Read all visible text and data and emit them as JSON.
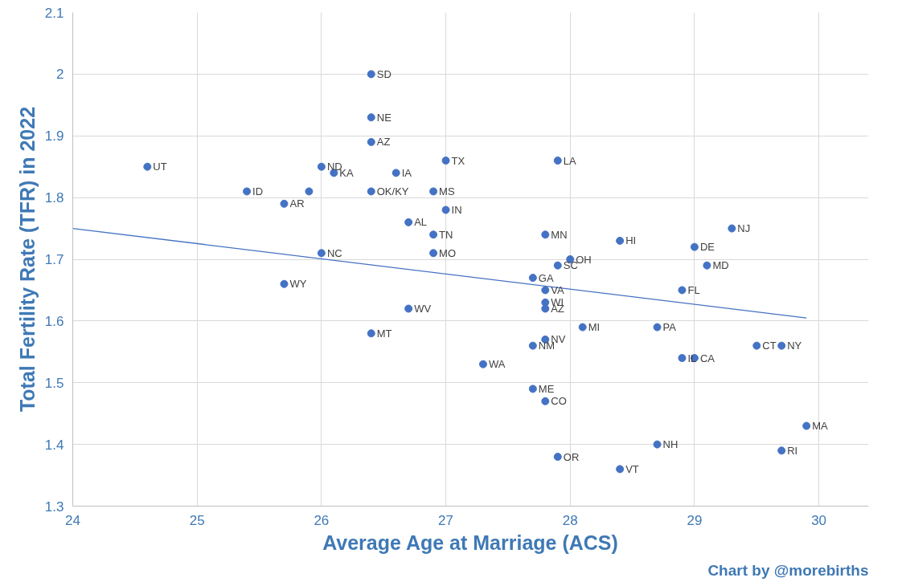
{
  "chart_data": {
    "type": "scatter",
    "xlabel": "Average Age at Marriage (ACS)",
    "ylabel": "Total Fertility Rate (TFR) in 2022",
    "annotations": [
      "Chart by @morebirths"
    ],
    "xlim": [
      24,
      30.4
    ],
    "xticks": [
      24,
      25,
      26,
      27,
      28,
      29,
      30
    ],
    "ylim": [
      1.3,
      2.1
    ],
    "yticks": [
      1.3,
      1.4,
      1.5,
      1.6,
      1.7,
      1.8,
      1.9,
      {
        "value": 2.0,
        "label": "2"
      },
      2.1
    ],
    "grid": true,
    "series": [
      {
        "marker": "circle",
        "color": "#4472c4",
        "x": [
          24.6,
          25.4,
          25.7,
          25.9,
          26.0,
          26.1,
          26.4,
          26.4,
          26.4,
          26.4,
          26.6,
          27.0,
          26.9,
          27.0,
          26.7,
          26.9,
          26.9,
          26.0,
          25.7,
          26.7,
          26.4,
          27.9,
          27.8,
          27.9,
          28.0,
          27.7,
          27.8,
          27.8,
          27.8,
          28.1,
          27.7,
          27.8,
          27.3,
          27.7,
          27.8,
          27.9,
          28.4,
          28.7,
          28.4,
          29.3,
          29.0,
          29.1,
          28.9,
          28.7,
          28.9,
          29.0,
          29.5,
          29.7,
          29.9,
          29.7
        ],
        "values": [
          1.85,
          1.81,
          1.79,
          1.81,
          1.85,
          1.84,
          2.0,
          1.93,
          1.89,
          1.81,
          1.84,
          1.86,
          1.81,
          1.78,
          1.76,
          1.74,
          1.71,
          1.71,
          1.66,
          1.62,
          1.58,
          1.86,
          1.74,
          1.69,
          1.7,
          1.67,
          1.65,
          1.63,
          1.62,
          1.59,
          1.56,
          1.57,
          1.53,
          1.49,
          1.47,
          1.38,
          1.36,
          1.4,
          1.73,
          1.75,
          1.72,
          1.69,
          1.65,
          1.59,
          1.54,
          1.54,
          1.56,
          1.56,
          1.43,
          1.39
        ],
        "value_labels": [
          "UT",
          "ID",
          "AR",
          null,
          "ND",
          "KA",
          "SD",
          "NE",
          "AZ",
          "OK/KY",
          "IA",
          "TX",
          "MS",
          "IN",
          "AL",
          "TN",
          "MO",
          "NC",
          "WY",
          "WV",
          "MT",
          "LA",
          "MN",
          "SC",
          "OH",
          "GA",
          "VA",
          "WI",
          "AZ",
          "MI",
          "NM",
          "NV",
          "WA",
          "ME",
          "CO",
          "OR",
          "VT",
          "NH",
          "HI",
          "NJ",
          "DE",
          "MD",
          "FL",
          "PA",
          "IL",
          "CA",
          "CT",
          "NY",
          "MA",
          "RI"
        ]
      },
      {
        "type": "line",
        "color": "#4472c4",
        "x": [
          24,
          29.9
        ],
        "values": [
          1.75,
          1.605
        ]
      }
    ]
  }
}
